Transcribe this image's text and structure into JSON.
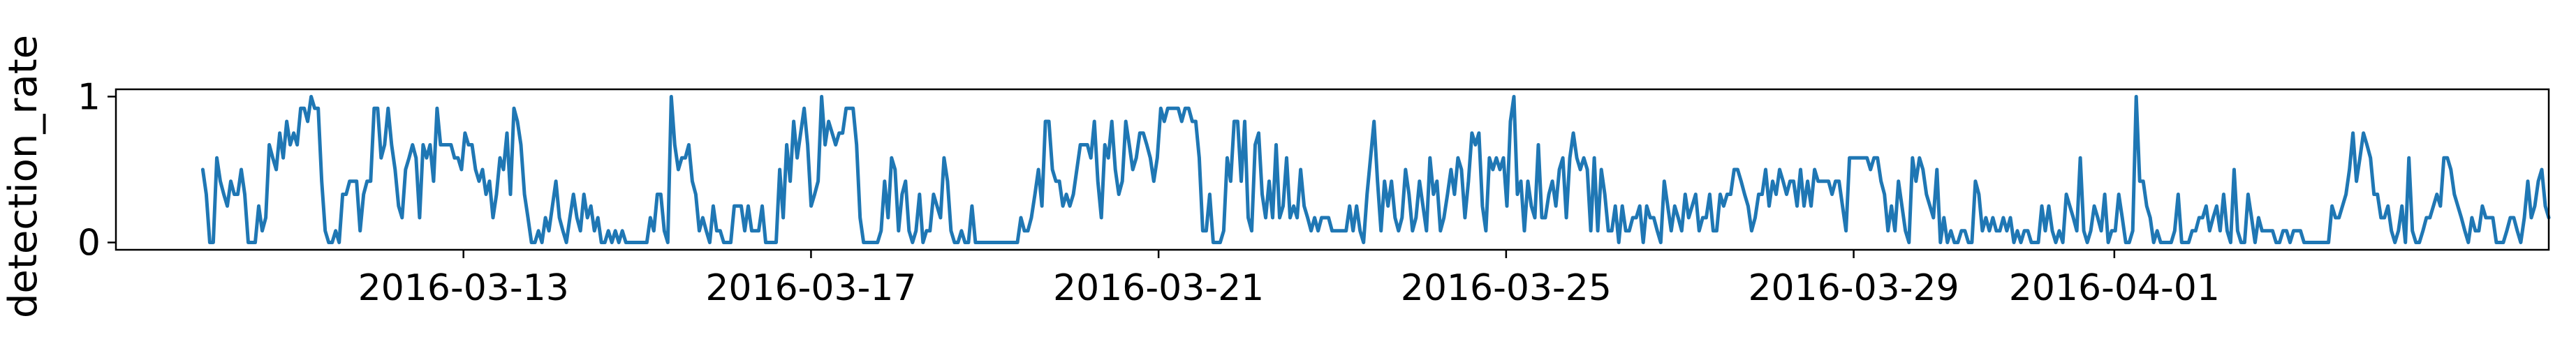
{
  "chart_data": {
    "type": "line",
    "title": "",
    "xlabel": "",
    "ylabel": "detection_rate",
    "x_start": "2016-03-10",
    "x_end": "2016-04-06",
    "xlim": [
      "2016-03-09",
      "2016-04-06"
    ],
    "ylim": [
      -0.05,
      1.05
    ],
    "yticks": [
      0,
      1
    ],
    "ytick_labels": [
      "0",
      "1"
    ],
    "xticks": [
      "2016-03-13",
      "2016-03-17",
      "2016-03-21",
      "2016-03-25",
      "2016-03-29",
      "2016-04-01"
    ],
    "grid": false,
    "legend": "none",
    "line_color": "#1f77b4",
    "series": [
      {
        "values": [
          0.5,
          0.33,
          0,
          0,
          0.58,
          0.42,
          0.33,
          0.25,
          0.42,
          0.33,
          0.33,
          0.5,
          0.33,
          0,
          0,
          0,
          0.25,
          0.08,
          0.17,
          0.67,
          0.58,
          0.5,
          0.75,
          0.58,
          0.83,
          0.67,
          0.75,
          0.67,
          0.92,
          0.92,
          0.83,
          1,
          0.92,
          0.92,
          0.42,
          0.08,
          0,
          0,
          0.08,
          0,
          0.33,
          0.33,
          0.42,
          0.42,
          0.42,
          0.08,
          0.33,
          0.42,
          0.42,
          0.92,
          0.92,
          0.58,
          0.67,
          0.92,
          0.67,
          0.5,
          0.25,
          0.17,
          0.5,
          0.58,
          0.67,
          0.58,
          0.17,
          0.67,
          0.58,
          0.67,
          0.42,
          0.92,
          0.67,
          0.67,
          0.67,
          0.67,
          0.58,
          0.58,
          0.5,
          0.75,
          0.67,
          0.67,
          0.5,
          0.42,
          0.5,
          0.33,
          0.42,
          0.17,
          0.33,
          0.58,
          0.5,
          0.75,
          0.33,
          0.92,
          0.83,
          0.67,
          0.33,
          0.17,
          0,
          0,
          0.08,
          0,
          0.17,
          0.08,
          0.25,
          0.42,
          0.17,
          0.08,
          0,
          0.17,
          0.33,
          0.17,
          0.08,
          0.33,
          0.17,
          0.25,
          0.08,
          0.17,
          0,
          0,
          0.08,
          0,
          0.08,
          0,
          0.08,
          0,
          0,
          0,
          0,
          0,
          0,
          0,
          0.17,
          0.08,
          0.33,
          0.33,
          0.08,
          0,
          1,
          0.67,
          0.5,
          0.58,
          0.58,
          0.67,
          0.42,
          0.33,
          0.08,
          0.17,
          0.08,
          0,
          0.25,
          0.08,
          0.08,
          0,
          0,
          0,
          0.25,
          0.25,
          0.25,
          0.08,
          0.25,
          0.08,
          0.08,
          0.08,
          0.25,
          0,
          0,
          0,
          0,
          0.5,
          0.17,
          0.67,
          0.42,
          0.83,
          0.58,
          0.75,
          0.92,
          0.67,
          0.25,
          0.33,
          0.42,
          1,
          0.67,
          0.83,
          0.75,
          0.67,
          0.75,
          0.75,
          0.92,
          0.92,
          0.92,
          0.67,
          0.17,
          0,
          0,
          0,
          0,
          0,
          0.08,
          0.42,
          0.17,
          0.58,
          0.5,
          0.08,
          0.33,
          0.42,
          0.08,
          0,
          0.08,
          0.33,
          0,
          0.08,
          0.08,
          0.33,
          0.25,
          0.17,
          0.58,
          0.42,
          0.08,
          0,
          0,
          0.08,
          0,
          0,
          0.25,
          0,
          0,
          0,
          0,
          0,
          0,
          0,
          0,
          0,
          0,
          0,
          0,
          0,
          0.17,
          0.08,
          0.08,
          0.17,
          0.33,
          0.5,
          0.25,
          0.83,
          0.83,
          0.5,
          0.42,
          0.42,
          0.25,
          0.33,
          0.25,
          0.33,
          0.5,
          0.67,
          0.67,
          0.67,
          0.58,
          0.83,
          0.42,
          0.17,
          0.67,
          0.58,
          0.83,
          0.5,
          0.33,
          0.42,
          0.83,
          0.67,
          0.5,
          0.58,
          0.75,
          0.75,
          0.67,
          0.58,
          0.42,
          0.58,
          0.92,
          0.83,
          0.92,
          0.92,
          0.92,
          0.92,
          0.83,
          0.92,
          0.92,
          0.83,
          0.83,
          0.58,
          0.08,
          0.08,
          0.33,
          0,
          0,
          0,
          0.08,
          0.58,
          0.42,
          0.83,
          0.83,
          0.42,
          0.83,
          0.17,
          0.08,
          0.67,
          0.75,
          0.33,
          0.17,
          0.42,
          0.17,
          0.67,
          0.17,
          0.25,
          0.58,
          0.17,
          0.25,
          0.17,
          0.5,
          0.25,
          0.17,
          0.08,
          0.17,
          0.08,
          0.17,
          0.17,
          0.17,
          0.08,
          0.08,
          0.08,
          0.08,
          0.08,
          0.25,
          0.08,
          0.25,
          0.08,
          0,
          0.33,
          0.58,
          0.83,
          0.42,
          0.08,
          0.42,
          0.25,
          0.42,
          0.17,
          0.08,
          0.17,
          0.5,
          0.33,
          0.08,
          0.17,
          0.42,
          0.25,
          0.08,
          0.58,
          0.33,
          0.42,
          0.08,
          0.17,
          0.33,
          0.5,
          0.33,
          0.58,
          0.5,
          0.17,
          0.42,
          0.75,
          0.67,
          0.75,
          0.25,
          0.08,
          0.58,
          0.5,
          0.58,
          0.5,
          0.58,
          0.25,
          0.83,
          1,
          0.33,
          0.42,
          0.08,
          0.42,
          0.25,
          0.17,
          0.67,
          0.17,
          0.17,
          0.33,
          0.42,
          0.25,
          0.5,
          0.58,
          0.17,
          0.58,
          0.75,
          0.58,
          0.5,
          0.58,
          0.5,
          0.08,
          0.58,
          0.08,
          0.5,
          0.33,
          0.08,
          0.08,
          0.25,
          0,
          0.25,
          0.08,
          0.08,
          0.17,
          0.17,
          0.25,
          0,
          0.25,
          0.17,
          0.17,
          0.08,
          0,
          0.42,
          0.25,
          0.08,
          0.25,
          0.17,
          0.08,
          0.33,
          0.17,
          0.25,
          0.33,
          0.08,
          0.17,
          0.17,
          0.33,
          0.08,
          0.08,
          0.33,
          0.25,
          0.33,
          0.33,
          0.5,
          0.5,
          0.42,
          0.33,
          0.25,
          0.08,
          0.17,
          0.33,
          0.33,
          0.5,
          0.25,
          0.42,
          0.33,
          0.5,
          0.42,
          0.33,
          0.42,
          0.42,
          0.25,
          0.5,
          0.25,
          0.42,
          0.25,
          0.5,
          0.42,
          0.42,
          0.42,
          0.42,
          0.33,
          0.42,
          0.42,
          0.25,
          0.08,
          0.58,
          0.58,
          0.58,
          0.58,
          0.58,
          0.58,
          0.5,
          0.58,
          0.58,
          0.42,
          0.33,
          0.08,
          0.25,
          0.08,
          0.42,
          0.25,
          0.08,
          0,
          0.58,
          0.42,
          0.58,
          0.5,
          0.33,
          0.25,
          0.17,
          0.5,
          0,
          0.17,
          0,
          0.08,
          0,
          0,
          0.08,
          0.08,
          0,
          0,
          0.42,
          0.33,
          0.08,
          0.17,
          0.08,
          0.17,
          0.08,
          0.08,
          0.17,
          0.08,
          0.17,
          0,
          0.08,
          0,
          0.08,
          0.08,
          0,
          0,
          0,
          0.25,
          0.08,
          0.25,
          0.08,
          0,
          0.08,
          0,
          0.33,
          0.25,
          0.17,
          0.08,
          0.58,
          0.08,
          0,
          0.08,
          0.25,
          0.17,
          0.08,
          0.33,
          0,
          0.08,
          0.08,
          0.33,
          0.17,
          0,
          0,
          0.08,
          1,
          0.42,
          0.42,
          0.25,
          0.17,
          0,
          0.08,
          0,
          0,
          0,
          0,
          0.08,
          0.33,
          0,
          0,
          0,
          0.08,
          0.08,
          0.17,
          0.17,
          0.25,
          0.08,
          0.17,
          0.25,
          0.08,
          0.33,
          0.08,
          0,
          0.5,
          0.08,
          0,
          0,
          0.33,
          0.17,
          0,
          0.17,
          0.08,
          0.08,
          0.08,
          0.08,
          0,
          0,
          0.08,
          0.08,
          0,
          0.08,
          0.08,
          0.08,
          0,
          0,
          0,
          0,
          0,
          0,
          0,
          0,
          0.25,
          0.17,
          0.17,
          0.25,
          0.33,
          0.5,
          0.75,
          0.42,
          0.58,
          0.75,
          0.67,
          0.58,
          0.33,
          0.33,
          0.17,
          0.17,
          0.25,
          0.08,
          0,
          0.08,
          0.25,
          0,
          0.58,
          0.08,
          0,
          0,
          0.08,
          0.17,
          0.17,
          0.25,
          0.33,
          0.25,
          0.58,
          0.58,
          0.5,
          0.33,
          0.25,
          0.17,
          0.08,
          0,
          0.17,
          0.08,
          0.08,
          0.25,
          0.17,
          0.17,
          0.17,
          0,
          0,
          0,
          0.08,
          0.17,
          0.17,
          0.08,
          0,
          0.17,
          0.42,
          0.17,
          0.25,
          0.42,
          0.5,
          0.25,
          0.17
        ]
      }
    ]
  }
}
